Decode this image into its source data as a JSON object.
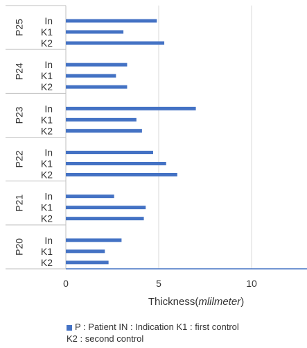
{
  "chart_data": {
    "type": "bar",
    "orientation": "horizontal",
    "groups": [
      {
        "label": "P25",
        "bars": [
          {
            "label": "In",
            "value": 4.9
          },
          {
            "label": "K1",
            "value": 3.1
          },
          {
            "label": "K2",
            "value": 5.3
          }
        ]
      },
      {
        "label": "P24",
        "bars": [
          {
            "label": "In",
            "value": 3.3
          },
          {
            "label": "K1",
            "value": 2.7
          },
          {
            "label": "K2",
            "value": 3.3
          }
        ]
      },
      {
        "label": "P23",
        "bars": [
          {
            "label": "In",
            "value": 7.0
          },
          {
            "label": "K1",
            "value": 3.8
          },
          {
            "label": "K2",
            "value": 4.1
          }
        ]
      },
      {
        "label": "P22",
        "bars": [
          {
            "label": "In",
            "value": 4.7
          },
          {
            "label": "K1",
            "value": 5.4
          },
          {
            "label": "K2",
            "value": 6.0
          }
        ]
      },
      {
        "label": "P21",
        "bars": [
          {
            "label": "In",
            "value": 2.6
          },
          {
            "label": "K1",
            "value": 4.3
          },
          {
            "label": "K2",
            "value": 4.2
          }
        ]
      },
      {
        "label": "P20",
        "bars": [
          {
            "label": "In",
            "value": 3.0
          },
          {
            "label": "K1",
            "value": 2.1
          },
          {
            "label": "K2",
            "value": 2.3
          }
        ]
      }
    ],
    "x_ticks": [
      "0",
      "5",
      "10"
    ],
    "xlim": [
      0,
      13
    ],
    "xlabel": "Thickness(",
    "xlabel_unit": "mlilmeter",
    "xlabel_suffix": ")",
    "grid": true,
    "legend": {
      "position": "bottom",
      "line1": "P : Patient IN : Indication K1 : first control",
      "line2": "K2 : second control"
    },
    "colors": {
      "bar": "#4472c4",
      "grid": "#d9d9d9",
      "axis": "#4472c4",
      "group_line": "#bfbfbf"
    }
  }
}
